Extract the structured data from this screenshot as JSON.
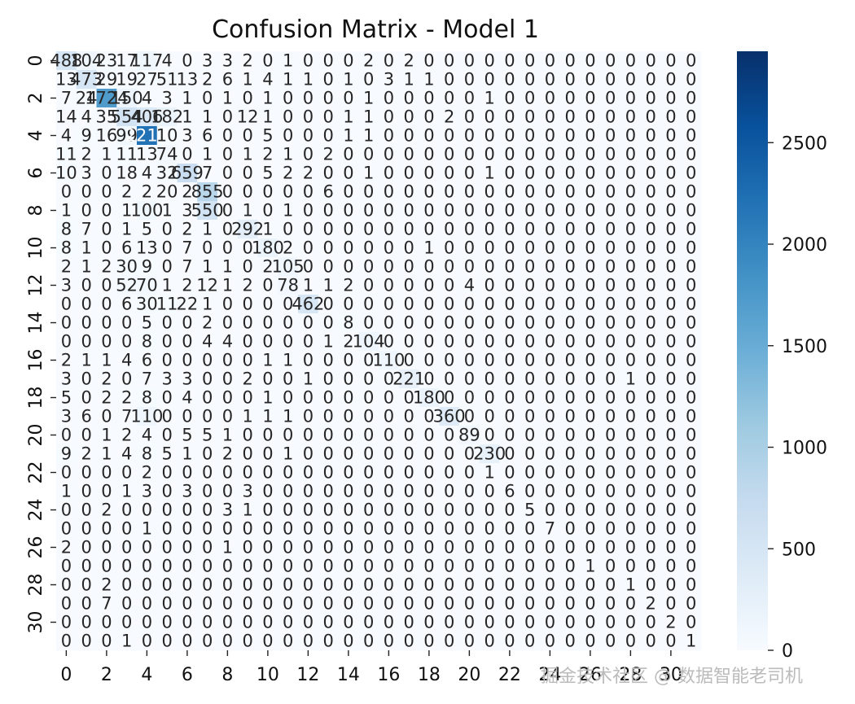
{
  "chart_data": {
    "type": "heatmap",
    "title": "Confusion Matrix - Model 1",
    "xlabel": "",
    "ylabel": "",
    "x_tick_labels": [
      "0",
      "2",
      "4",
      "6",
      "8",
      "10",
      "12",
      "14",
      "16",
      "18",
      "20",
      "22",
      "24",
      "26",
      "28",
      "30"
    ],
    "y_tick_labels": [
      "0",
      "2",
      "4",
      "6",
      "8",
      "10",
      "12",
      "14",
      "16",
      "18",
      "20",
      "22",
      "24",
      "26",
      "28",
      "30"
    ],
    "colorbar": {
      "ticks": [
        0,
        500,
        1000,
        1500,
        2000,
        2500
      ],
      "vmin": 0,
      "vmax": 2950,
      "colormap": "Blues"
    },
    "matrix": [
      [
        488,
        104,
        23,
        17,
        117,
        4,
        0,
        3,
        3,
        2,
        0,
        1,
        0,
        0,
        0,
        2,
        0,
        2,
        0,
        0,
        0,
        0,
        0,
        0,
        0,
        0,
        0,
        0,
        0,
        0,
        0,
        0
      ],
      [
        13,
        473,
        29,
        19,
        27,
        51,
        13,
        2,
        6,
        1,
        4,
        1,
        1,
        0,
        1,
        0,
        3,
        1,
        1,
        0,
        0,
        0,
        0,
        0,
        0,
        0,
        0,
        0,
        0,
        0,
        0,
        0
      ],
      [
        7,
        24,
        1724,
        150,
        4,
        3,
        1,
        0,
        1,
        0,
        1,
        0,
        0,
        0,
        0,
        1,
        0,
        0,
        0,
        0,
        0,
        1,
        0,
        0,
        0,
        0,
        0,
        0,
        0,
        0,
        0,
        0
      ],
      [
        14,
        4,
        35,
        554,
        406,
        182,
        1,
        1,
        0,
        12,
        1,
        0,
        0,
        0,
        1,
        1,
        0,
        0,
        0,
        2,
        0,
        0,
        0,
        0,
        0,
        0,
        0,
        0,
        0,
        0,
        0,
        0
      ],
      [
        4,
        9,
        16,
        99,
        2213,
        10,
        3,
        6,
        0,
        0,
        5,
        0,
        0,
        0,
        1,
        1,
        0,
        0,
        0,
        0,
        0,
        0,
        0,
        0,
        0,
        0,
        0,
        0,
        0,
        0,
        0,
        0
      ],
      [
        11,
        2,
        1,
        11,
        13,
        74,
        0,
        1,
        0,
        1,
        2,
        1,
        0,
        2,
        0,
        0,
        0,
        0,
        0,
        0,
        0,
        0,
        0,
        0,
        0,
        0,
        0,
        0,
        0,
        0,
        0,
        0
      ],
      [
        10,
        3,
        0,
        18,
        4,
        32,
        659,
        7,
        0,
        0,
        5,
        2,
        2,
        0,
        0,
        1,
        0,
        0,
        0,
        0,
        0,
        1,
        0,
        0,
        0,
        0,
        0,
        0,
        0,
        0,
        0,
        0
      ],
      [
        0,
        0,
        0,
        2,
        2,
        20,
        2,
        855,
        0,
        0,
        0,
        0,
        0,
        6,
        0,
        0,
        0,
        0,
        0,
        0,
        0,
        0,
        0,
        0,
        0,
        0,
        0,
        0,
        0,
        0,
        0,
        0
      ],
      [
        1,
        0,
        0,
        1,
        100,
        1,
        3,
        550,
        0,
        1,
        0,
        1,
        0,
        0,
        0,
        0,
        0,
        0,
        0,
        0,
        0,
        0,
        0,
        0,
        0,
        0,
        0,
        0,
        0,
        0,
        0,
        0
      ],
      [
        8,
        7,
        0,
        1,
        5,
        0,
        2,
        1,
        0,
        292,
        1,
        0,
        0,
        0,
        0,
        0,
        0,
        0,
        0,
        0,
        0,
        0,
        0,
        0,
        0,
        0,
        0,
        0,
        0,
        0,
        0,
        0
      ],
      [
        8,
        1,
        0,
        6,
        13,
        0,
        7,
        0,
        0,
        0,
        180,
        2,
        0,
        0,
        0,
        0,
        0,
        0,
        1,
        0,
        0,
        0,
        0,
        0,
        0,
        0,
        0,
        0,
        0,
        0,
        0,
        0
      ],
      [
        2,
        1,
        2,
        30,
        9,
        0,
        7,
        1,
        1,
        0,
        2,
        105,
        0,
        0,
        0,
        0,
        0,
        0,
        0,
        0,
        0,
        0,
        0,
        0,
        0,
        0,
        0,
        0,
        0,
        0,
        0,
        0
      ],
      [
        3,
        0,
        0,
        52,
        70,
        1,
        2,
        12,
        1,
        2,
        0,
        78,
        1,
        1,
        2,
        0,
        0,
        0,
        0,
        0,
        4,
        0,
        0,
        0,
        0,
        0,
        0,
        0,
        0,
        0,
        0,
        0
      ],
      [
        0,
        0,
        0,
        6,
        30,
        11,
        22,
        1,
        0,
        0,
        0,
        0,
        462,
        0,
        0,
        0,
        0,
        0,
        0,
        0,
        0,
        0,
        0,
        0,
        0,
        0,
        0,
        0,
        0,
        0,
        0,
        0
      ],
      [
        0,
        0,
        0,
        0,
        5,
        0,
        0,
        2,
        0,
        0,
        0,
        0,
        0,
        0,
        8,
        0,
        0,
        0,
        0,
        0,
        0,
        0,
        0,
        0,
        0,
        0,
        0,
        0,
        0,
        0,
        0,
        0
      ],
      [
        0,
        0,
        0,
        0,
        8,
        0,
        0,
        4,
        4,
        0,
        0,
        0,
        0,
        1,
        2,
        104,
        0,
        0,
        0,
        0,
        0,
        0,
        0,
        0,
        0,
        0,
        0,
        0,
        0,
        0,
        0,
        0
      ],
      [
        2,
        1,
        1,
        4,
        6,
        0,
        0,
        0,
        0,
        0,
        1,
        1,
        0,
        0,
        0,
        0,
        110,
        0,
        0,
        0,
        0,
        0,
        0,
        0,
        0,
        0,
        0,
        0,
        0,
        0,
        0,
        0
      ],
      [
        3,
        0,
        2,
        0,
        7,
        3,
        3,
        0,
        0,
        2,
        0,
        0,
        1,
        0,
        0,
        0,
        0,
        221,
        0,
        0,
        0,
        0,
        0,
        0,
        0,
        0,
        0,
        0,
        1,
        0,
        0,
        0
      ],
      [
        5,
        0,
        2,
        2,
        8,
        0,
        4,
        0,
        0,
        0,
        1,
        0,
        0,
        0,
        0,
        0,
        0,
        0,
        180,
        0,
        0,
        0,
        0,
        0,
        0,
        0,
        0,
        0,
        0,
        0,
        0,
        0
      ],
      [
        3,
        6,
        0,
        7,
        110,
        0,
        0,
        0,
        0,
        1,
        1,
        1,
        0,
        0,
        0,
        0,
        0,
        0,
        0,
        360,
        0,
        0,
        0,
        0,
        0,
        0,
        0,
        0,
        0,
        0,
        0,
        0
      ],
      [
        0,
        0,
        1,
        2,
        4,
        0,
        5,
        5,
        1,
        0,
        0,
        0,
        0,
        0,
        0,
        0,
        0,
        0,
        0,
        0,
        89,
        0,
        0,
        0,
        0,
        0,
        0,
        0,
        0,
        0,
        0,
        0
      ],
      [
        9,
        2,
        1,
        4,
        8,
        5,
        1,
        0,
        2,
        0,
        0,
        1,
        0,
        0,
        0,
        0,
        0,
        0,
        0,
        0,
        0,
        230,
        0,
        0,
        0,
        0,
        0,
        0,
        0,
        0,
        0,
        0
      ],
      [
        0,
        0,
        0,
        0,
        2,
        0,
        0,
        0,
        0,
        0,
        0,
        0,
        0,
        0,
        0,
        0,
        0,
        0,
        0,
        0,
        0,
        1,
        0,
        0,
        0,
        0,
        0,
        0,
        0,
        0,
        0,
        0
      ],
      [
        1,
        0,
        0,
        1,
        3,
        0,
        3,
        0,
        0,
        3,
        0,
        0,
        0,
        0,
        0,
        0,
        0,
        0,
        0,
        0,
        0,
        0,
        6,
        0,
        0,
        0,
        0,
        0,
        0,
        0,
        0,
        0
      ],
      [
        0,
        0,
        2,
        0,
        0,
        0,
        0,
        0,
        3,
        1,
        0,
        0,
        0,
        0,
        0,
        0,
        0,
        0,
        0,
        0,
        0,
        0,
        0,
        5,
        0,
        0,
        0,
        0,
        0,
        0,
        0,
        0
      ],
      [
        0,
        0,
        0,
        0,
        1,
        0,
        0,
        0,
        0,
        0,
        0,
        0,
        0,
        0,
        0,
        0,
        0,
        0,
        0,
        0,
        0,
        0,
        0,
        0,
        7,
        0,
        0,
        0,
        0,
        0,
        0,
        0
      ],
      [
        2,
        0,
        0,
        0,
        0,
        0,
        0,
        0,
        1,
        0,
        0,
        0,
        0,
        0,
        0,
        0,
        0,
        0,
        0,
        0,
        0,
        0,
        0,
        0,
        0,
        0,
        0,
        0,
        0,
        0,
        0,
        0
      ],
      [
        0,
        0,
        0,
        0,
        0,
        0,
        0,
        0,
        0,
        0,
        0,
        0,
        0,
        0,
        0,
        0,
        0,
        0,
        0,
        0,
        0,
        0,
        0,
        0,
        0,
        0,
        1,
        0,
        0,
        0,
        0,
        0
      ],
      [
        0,
        0,
        2,
        0,
        0,
        0,
        0,
        0,
        0,
        0,
        0,
        0,
        0,
        0,
        0,
        0,
        0,
        0,
        0,
        0,
        0,
        0,
        0,
        0,
        0,
        0,
        0,
        0,
        1,
        0,
        0,
        0
      ],
      [
        0,
        0,
        7,
        0,
        0,
        0,
        0,
        0,
        0,
        0,
        0,
        0,
        0,
        0,
        0,
        0,
        0,
        0,
        0,
        0,
        0,
        0,
        0,
        0,
        0,
        0,
        0,
        0,
        0,
        2,
        0,
        0
      ],
      [
        0,
        0,
        0,
        0,
        0,
        0,
        0,
        0,
        0,
        0,
        0,
        0,
        0,
        0,
        0,
        0,
        0,
        0,
        0,
        0,
        0,
        0,
        0,
        0,
        0,
        0,
        0,
        0,
        0,
        0,
        2,
        0
      ],
      [
        0,
        0,
        0,
        1,
        0,
        0,
        0,
        0,
        0,
        0,
        0,
        0,
        0,
        0,
        0,
        0,
        0,
        0,
        0,
        0,
        0,
        0,
        0,
        0,
        0,
        0,
        0,
        0,
        0,
        0,
        0,
        1
      ]
    ]
  },
  "watermark": "掘金技术社区 @ 数据智能老司机"
}
